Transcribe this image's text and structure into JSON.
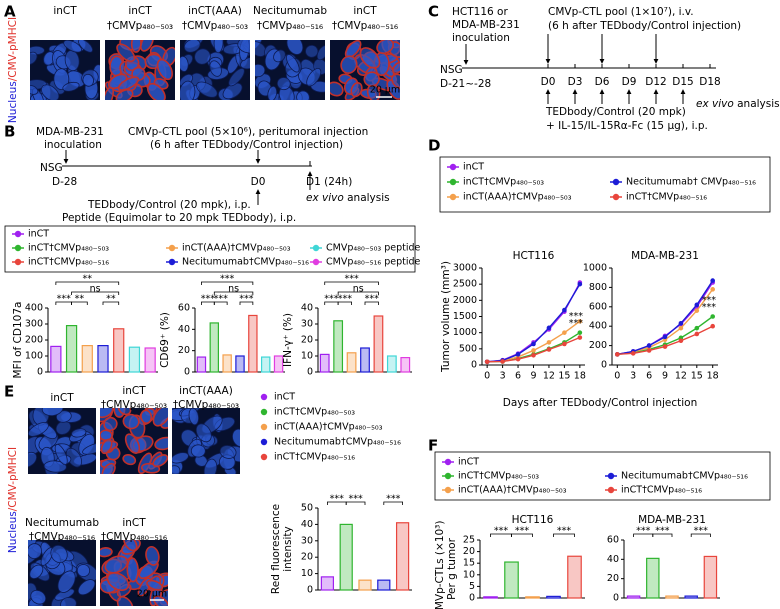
{
  "panels": {
    "A": {
      "label": "A",
      "stain": [
        "Nucleus",
        "/CMV-pMHCI"
      ],
      "titles": [
        [
          "inCT"
        ],
        [
          "inCT",
          "†CMVp₄₈₀₋₅₀₃"
        ],
        [
          "inCT(AAA)",
          "†CMVp₄₈₀₋₅₀₃"
        ],
        [
          "Necitumumab",
          "†CMVp₄₈₀₋₅₁₆"
        ],
        [
          "inCT",
          "†CMVp₄₈₀₋₅₁₆"
        ]
      ],
      "scale_bar": "20 μm"
    },
    "B": {
      "label": "B",
      "inoculation": [
        "MDA-MB-231",
        "inoculation"
      ],
      "ctl": "CMVp-CTL pool (5×10⁶), peritumoral injection",
      "ctl_note": "(6 h after TEDbody/Control injection)",
      "host": "NSG",
      "day_start": "D-28",
      "day0": "D0",
      "day1": "D1 (24h)",
      "treat": "TEDbody/Control (20 mpk), i.p.",
      "peptide": "Peptide (Equimolar to 20 mpk TEDbody), i.p.",
      "analysis": [
        "ex vivo",
        " analysis"
      ],
      "legend": [
        {
          "name": "inCT",
          "color": "#a020f0"
        },
        {
          "name": "inCT†CMVp₄₈₀₋₅₀₃",
          "color": "#2fb52f"
        },
        {
          "name": "inCT(AAA)†CMVp₄₈₀₋₅₀₃",
          "color": "#f4a04c"
        },
        {
          "name": "inCT†CMVp₄₈₀₋₅₁₆",
          "color": "#e8453c"
        },
        {
          "name": "Necitumumab†CMVp₄₈₀₋₅₁₆",
          "color": "#1c1cd6"
        },
        {
          "name": "CMVp₄₈₀₋₅₀₃ peptide",
          "color": "#3fd6d6"
        },
        {
          "name": "CMVp₄₈₀₋₅₁₆ peptide",
          "color": "#e03ce0"
        }
      ]
    },
    "C": {
      "label": "C",
      "inoculation": [
        "HCT116 or",
        "MDA-MB-231",
        "inoculation"
      ],
      "ctl": "CMVp-CTL pool (1×10⁷), i.v.",
      "ctl_note": "(6 h after TEDbody/Control injection)",
      "host": "NSG",
      "day_start": "D-21~-28",
      "days": [
        "D0",
        "D3",
        "D6",
        "D9",
        "D12",
        "D15",
        "D18"
      ],
      "treat": "TEDbody/Control (20 mpk)",
      "cytokine": "+ IL-15/IL-15Rα-Fc (15 μg), i.p.",
      "analysis": [
        "ex vivo",
        " analysis"
      ]
    },
    "D": {
      "label": "D",
      "xlabel": "Days after TEDbody/Control injection"
    },
    "E": {
      "label": "E",
      "stain": [
        "Nucleus",
        "/CMV-pMHCI"
      ],
      "titles": [
        [
          "inCT"
        ],
        [
          "inCT",
          "†CMVp₄₈₀₋₅₀₃"
        ],
        [
          "inCT(AAA)",
          "†CMVp₄₈₀₋₅₀₃"
        ],
        [
          "Necitumumab",
          "†CMVp₄₈₀₋₅₁₆"
        ],
        [
          "inCT",
          "†CMVp₄₈₀₋₅₁₆"
        ]
      ],
      "scale_bar": "20 μm",
      "legend": [
        {
          "name": "inCT",
          "color": "#a020f0"
        },
        {
          "name": "inCT†CMVp₄₈₀₋₅₀₃",
          "color": "#2fb52f"
        },
        {
          "name": "inCT(AAA)†CMVp₄₈₀₋₅₀₃",
          "color": "#f4a04c"
        },
        {
          "name": "Necitumumab†CMVp₄₈₀₋₅₁₆",
          "color": "#1c1cd6"
        },
        {
          "name": "inCT†CMVp₄₈₀₋₅₁₆",
          "color": "#e8453c"
        }
      ]
    },
    "F": {
      "label": "F",
      "legend": [
        {
          "name": "inCT",
          "color": "#a020f0"
        },
        {
          "name": "inCT†CMVp₄₈₀₋₅₀₃",
          "color": "#2fb52f"
        },
        {
          "name": "inCT(AAA)†CMVp₄₈₀₋₅₀₃",
          "color": "#f4a04c"
        },
        {
          "name": "Necitumumab†CMVp₄₈₀₋₅₁₆",
          "color": "#1c1cd6"
        },
        {
          "name": "inCT†CMVp₄₈₀₋₅₁₆",
          "color": "#e8453c"
        }
      ]
    }
  },
  "chart_data": [
    {
      "type": "bar",
      "ylabel": "MFI of CD107a",
      "values": [
        160,
        290,
        165,
        165,
        270,
        155,
        150
      ],
      "colors": [
        "#a020f0",
        "#2fb52f",
        "#f4a04c",
        "#1c1cd6",
        "#e8453c",
        "#3fd6d6",
        "#e03ce0"
      ],
      "ylim": [
        0,
        400
      ],
      "yticks": [
        0,
        100,
        200,
        300,
        400
      ],
      "annotations": [
        "***",
        "**",
        "**",
        "ns",
        "**"
      ]
    },
    {
      "type": "bar",
      "ylabel": "CD69⁺ (%)",
      "values": [
        14,
        46,
        16,
        15,
        53,
        14,
        15
      ],
      "colors": [
        "#a020f0",
        "#2fb52f",
        "#f4a04c",
        "#1c1cd6",
        "#e8453c",
        "#3fd6d6",
        "#e03ce0"
      ],
      "ylim": [
        0,
        60
      ],
      "yticks": [
        0,
        20,
        40,
        60
      ],
      "annotations": [
        "***",
        "***",
        "***",
        "ns",
        "***"
      ]
    },
    {
      "type": "bar",
      "ylabel": "IFN-γ⁺ (%)",
      "values": [
        11,
        32,
        12,
        15,
        35,
        10,
        9
      ],
      "colors": [
        "#a020f0",
        "#2fb52f",
        "#f4a04c",
        "#1c1cd6",
        "#e8453c",
        "#3fd6d6",
        "#e03ce0"
      ],
      "ylim": [
        0,
        40
      ],
      "yticks": [
        0,
        10,
        20,
        30,
        40
      ],
      "annotations": [
        "***",
        "***",
        "***",
        "ns",
        "***"
      ]
    },
    {
      "type": "line",
      "title": "HCT116",
      "ylabel": "Tumor volume (mm³)",
      "x": [
        0,
        3,
        6,
        9,
        12,
        15,
        18
      ],
      "xlim": [
        -1,
        19
      ],
      "xticks": [
        0,
        3,
        6,
        9,
        12,
        15,
        18
      ],
      "ylim": [
        0,
        3000
      ],
      "yticks": [
        0,
        500,
        1000,
        1500,
        2000,
        2500,
        3000
      ],
      "series": [
        {
          "name": "inCT",
          "color": "#a020f0",
          "values": [
            100,
            150,
            350,
            700,
            1100,
            1650,
            2550
          ]
        },
        {
          "name": "inCT†CMVp₄₈₀₋₅₀₃",
          "color": "#2fb52f",
          "values": [
            100,
            110,
            200,
            330,
            500,
            700,
            1000
          ]
        },
        {
          "name": "inCT(AAA)†CMVp₄₈₀₋₅₀₃",
          "color": "#f4a04c",
          "values": [
            100,
            130,
            250,
            450,
            700,
            1000,
            1350
          ]
        },
        {
          "name": "Necitumumab† CMVp₄₈₀₋₅₁₆",
          "color": "#1c1cd6",
          "values": [
            100,
            140,
            330,
            650,
            1150,
            1700,
            2500
          ]
        },
        {
          "name": "inCT†CMVp₄₈₀₋₅₁₆",
          "color": "#e8453c",
          "values": [
            100,
            110,
            180,
            300,
            480,
            650,
            850
          ]
        }
      ],
      "annotations": [
        {
          "text": "***",
          "color": "#f4a04c"
        },
        {
          "text": "***",
          "color": "#2fb52f"
        }
      ]
    },
    {
      "type": "line",
      "title": "MDA-MB-231",
      "x": [
        0,
        3,
        6,
        9,
        12,
        15,
        18
      ],
      "xlim": [
        -1,
        19
      ],
      "xticks": [
        0,
        3,
        6,
        9,
        12,
        15,
        18
      ],
      "ylim": [
        0,
        1000
      ],
      "yticks": [
        0,
        200,
        400,
        600,
        800,
        1000
      ],
      "series": [
        {
          "color": "#a020f0",
          "values": [
            110,
            140,
            200,
            300,
            420,
            600,
            850
          ]
        },
        {
          "color": "#2fb52f",
          "values": [
            110,
            125,
            160,
            210,
            280,
            380,
            500
          ]
        },
        {
          "color": "#f4a04c",
          "values": [
            110,
            135,
            180,
            260,
            380,
            560,
            780
          ]
        },
        {
          "color": "#1c1cd6",
          "values": [
            110,
            140,
            200,
            290,
            430,
            620,
            870
          ]
        },
        {
          "color": "#e8453c",
          "values": [
            110,
            120,
            150,
            190,
            250,
            320,
            400
          ]
        }
      ],
      "annotations": [
        {
          "text": "***",
          "color": "#f4a04c"
        },
        {
          "text": "***",
          "color": "#2fb52f"
        }
      ]
    },
    {
      "type": "bar",
      "ylabel": [
        "Red fluorescence",
        "intensity"
      ],
      "values": [
        8,
        40,
        6,
        6,
        41
      ],
      "colors": [
        "#a020f0",
        "#2fb52f",
        "#f4a04c",
        "#1c1cd6",
        "#e8453c"
      ],
      "ylim": [
        0,
        50
      ],
      "yticks": [
        0,
        10,
        20,
        30,
        40,
        50
      ],
      "annotations": [
        "***",
        "***",
        "***"
      ]
    },
    {
      "type": "bar",
      "title": "HCT116",
      "ylabel": [
        "CMVp-CTLs (×10³)",
        "Per g tumor"
      ],
      "values": [
        0.5,
        15.5,
        0.5,
        0.7,
        18
      ],
      "colors": [
        "#a020f0",
        "#2fb52f",
        "#f4a04c",
        "#1c1cd6",
        "#e8453c"
      ],
      "ylim": [
        0,
        25
      ],
      "yticks": [
        0,
        5,
        10,
        15,
        20,
        25
      ],
      "annotations": [
        "***",
        "***",
        "***"
      ]
    },
    {
      "type": "bar",
      "title": "MDA-MB-231",
      "values": [
        2,
        41,
        2,
        2,
        43
      ],
      "colors": [
        "#a020f0",
        "#2fb52f",
        "#f4a04c",
        "#1c1cd6",
        "#e8453c"
      ],
      "ylim": [
        0,
        60
      ],
      "yticks": [
        0,
        20,
        40,
        60
      ],
      "annotations": [
        "***",
        "***",
        "***"
      ]
    }
  ]
}
